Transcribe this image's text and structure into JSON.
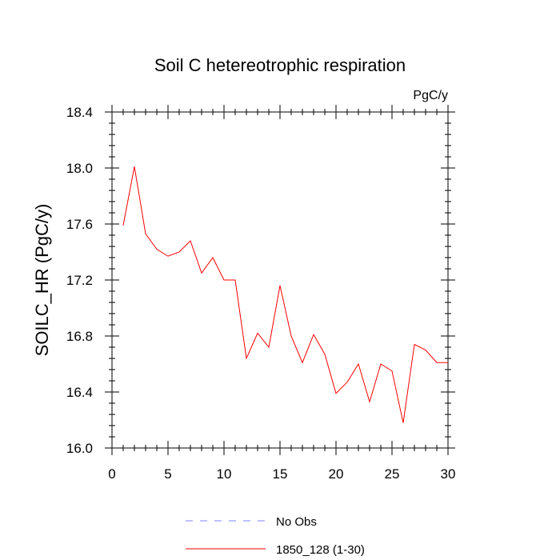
{
  "chart_data": {
    "type": "line",
    "title": "Soil C hetereotrophic respiration",
    "units_label": "PgC/y",
    "xlabel": "",
    "ylabel": "SOILC_HR  (PgC/y)",
    "xlim": [
      0,
      30
    ],
    "ylim": [
      16.0,
      18.4
    ],
    "x_ticks": [
      0,
      5,
      10,
      15,
      20,
      25,
      30
    ],
    "x_tick_labels": [
      "0",
      "5",
      "10",
      "15",
      "20",
      "25",
      "30"
    ],
    "y_ticks": [
      16.0,
      16.4,
      16.8,
      17.2,
      17.6,
      18.0,
      18.4
    ],
    "y_tick_labels": [
      "16.0",
      "16.4",
      "16.8",
      "17.2",
      "17.6",
      "18.0",
      "18.4"
    ],
    "grid": false,
    "series": [
      {
        "name": "1850_128 (1-30)",
        "color": "#ff0000",
        "style": "solid",
        "x": [
          1,
          2,
          3,
          4,
          5,
          6,
          7,
          8,
          9,
          10,
          11,
          12,
          13,
          14,
          15,
          16,
          17,
          18,
          19,
          20,
          21,
          22,
          23,
          24,
          25,
          26,
          27,
          28,
          29,
          30
        ],
        "values": [
          17.59,
          18.01,
          17.53,
          17.42,
          17.37,
          17.4,
          17.48,
          17.25,
          17.36,
          17.2,
          17.2,
          16.64,
          16.82,
          16.72,
          17.16,
          16.8,
          16.61,
          16.81,
          16.67,
          16.39,
          16.47,
          16.6,
          16.33,
          16.6,
          16.55,
          16.18,
          16.74,
          16.7,
          16.61,
          16.61
        ]
      }
    ],
    "legend": {
      "position": "bottom",
      "entries": [
        {
          "label": "No Obs",
          "color": "#8080ff",
          "style": "dashed"
        },
        {
          "label": "1850_128 (1-30)",
          "color": "#ff0000",
          "style": "solid"
        }
      ]
    }
  }
}
